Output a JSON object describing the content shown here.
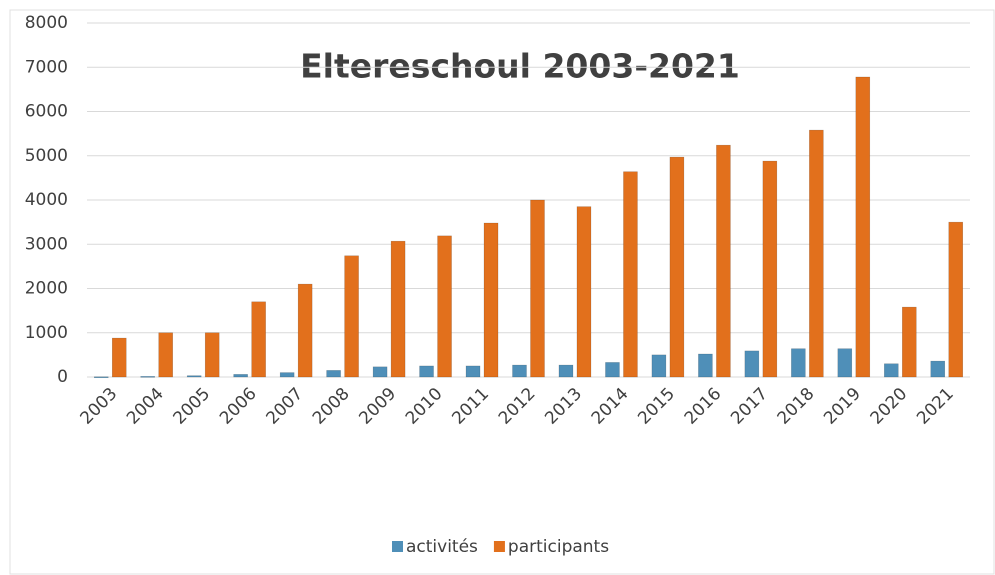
{
  "chart_data": {
    "type": "bar",
    "title": "Eltereschoul 2003-2021",
    "categories": [
      "2003",
      "2004",
      "2005",
      "2006",
      "2007",
      "2008",
      "2009",
      "2010",
      "2011",
      "2012",
      "2013",
      "2014",
      "2015",
      "2016",
      "2017",
      "2018",
      "2019",
      "2020",
      "2021"
    ],
    "series": [
      {
        "name": "activités",
        "color": "#4f8fb8",
        "values": [
          5,
          15,
          30,
          60,
          100,
          150,
          230,
          250,
          250,
          270,
          270,
          330,
          500,
          520,
          590,
          640,
          640,
          300,
          360
        ]
      },
      {
        "name": "participants",
        "color": "#e2701c",
        "values": [
          880,
          1000,
          1000,
          1700,
          2100,
          2740,
          3070,
          3190,
          3480,
          4000,
          3850,
          4640,
          4970,
          5240,
          4880,
          5580,
          6780,
          1580,
          3500
        ]
      }
    ],
    "ylim": [
      0,
      8000
    ],
    "yticks": [
      0,
      1000,
      2000,
      3000,
      4000,
      5000,
      6000,
      7000,
      8000
    ],
    "grid": true,
    "legend": "bottom"
  }
}
